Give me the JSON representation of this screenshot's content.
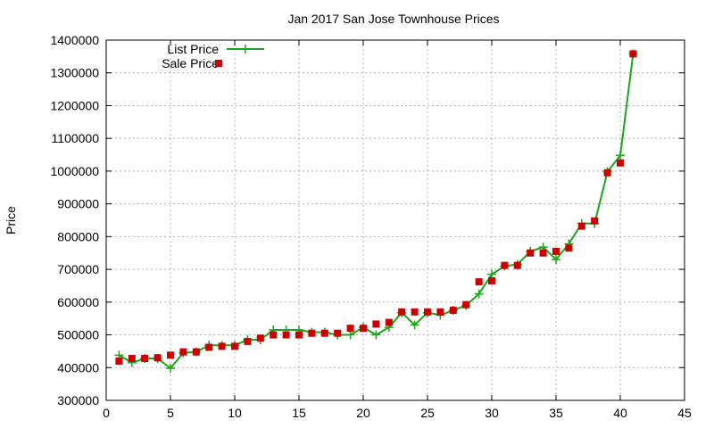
{
  "chart_data": {
    "type": "line",
    "title": "Jan 2017 San Jose Townhouse Prices",
    "xlabel": "",
    "ylabel": "Price",
    "xlim": [
      0,
      45
    ],
    "ylim": [
      300000,
      1400000
    ],
    "xticks": [
      0,
      5,
      10,
      15,
      20,
      25,
      30,
      35,
      40,
      45
    ],
    "yticks": [
      300000,
      400000,
      500000,
      600000,
      700000,
      800000,
      900000,
      1000000,
      1100000,
      1200000,
      1300000,
      1400000
    ],
    "grid": true,
    "legend_position": "top-left",
    "x": [
      1,
      2,
      3,
      4,
      5,
      6,
      7,
      8,
      9,
      10,
      11,
      12,
      13,
      14,
      15,
      16,
      17,
      18,
      19,
      20,
      21,
      22,
      23,
      24,
      25,
      26,
      27,
      28,
      29,
      30,
      31,
      32,
      33,
      34,
      35,
      36,
      37,
      38,
      39,
      40,
      41
    ],
    "series": [
      {
        "name": "List Price",
        "style": "line+cross",
        "color": "#1aa51a",
        "values": [
          438000,
          415000,
          428000,
          428000,
          398000,
          445000,
          448000,
          468000,
          468000,
          468000,
          485000,
          485000,
          515000,
          515000,
          515000,
          508000,
          508000,
          500000,
          500000,
          523000,
          500000,
          523000,
          568000,
          530000,
          568000,
          560000,
          575000,
          590000,
          625000,
          685000,
          710000,
          715000,
          755000,
          768000,
          730000,
          778000,
          840000,
          840000,
          998000,
          1048000,
          1358000
        ]
      },
      {
        "name": "Sale Price",
        "style": "square",
        "color": "#cc0000",
        "values": [
          420000,
          428000,
          428000,
          430000,
          438000,
          448000,
          448000,
          462000,
          465000,
          465000,
          480000,
          490000,
          500000,
          500000,
          500000,
          505000,
          505000,
          505000,
          520000,
          520000,
          533000,
          538000,
          570000,
          570000,
          570000,
          570000,
          575000,
          592000,
          662000,
          665000,
          712000,
          712000,
          750000,
          750000,
          755000,
          765000,
          832000,
          848000,
          995000,
          1025000,
          1358000
        ]
      }
    ]
  }
}
